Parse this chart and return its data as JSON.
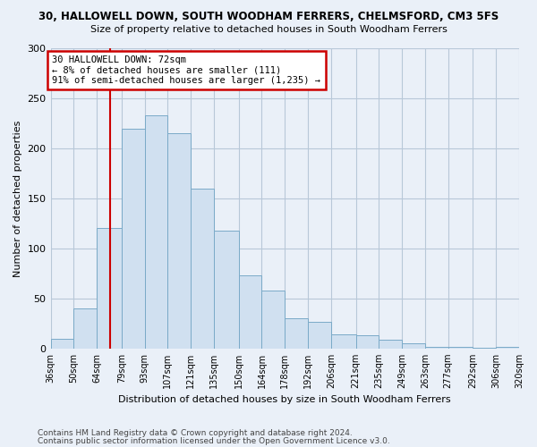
{
  "title1": "30, HALLOWELL DOWN, SOUTH WOODHAM FERRERS, CHELMSFORD, CM3 5FS",
  "title2": "Size of property relative to detached houses in South Woodham Ferrers",
  "xlabel": "Distribution of detached houses by size in South Woodham Ferrers",
  "ylabel": "Number of detached properties",
  "footer1": "Contains HM Land Registry data © Crown copyright and database right 2024.",
  "footer2": "Contains public sector information licensed under the Open Government Licence v3.0.",
  "bin_edges": [
    36,
    50,
    64,
    79,
    93,
    107,
    121,
    135,
    150,
    164,
    178,
    192,
    206,
    221,
    235,
    249,
    263,
    277,
    292,
    306,
    320
  ],
  "bar_heights": [
    10,
    40,
    120,
    220,
    233,
    215,
    160,
    118,
    73,
    58,
    30,
    27,
    14,
    13,
    9,
    5,
    2,
    2,
    1,
    2
  ],
  "bar_color": "#d0e0f0",
  "bar_edge_color": "#7aaac8",
  "vline_x": 72,
  "vline_color": "#cc0000",
  "annotation_text": "30 HALLOWELL DOWN: 72sqm\n← 8% of detached houses are smaller (111)\n91% of semi-detached houses are larger (1,235) →",
  "annotation_box_color": "white",
  "annotation_box_edge_color": "#cc0000",
  "ylim": [
    0,
    300
  ],
  "yticks": [
    0,
    50,
    100,
    150,
    200,
    250,
    300
  ],
  "background_color": "#eaf0f8",
  "plot_background": "#eaf0f8",
  "grid_color": "#b8c8d8"
}
